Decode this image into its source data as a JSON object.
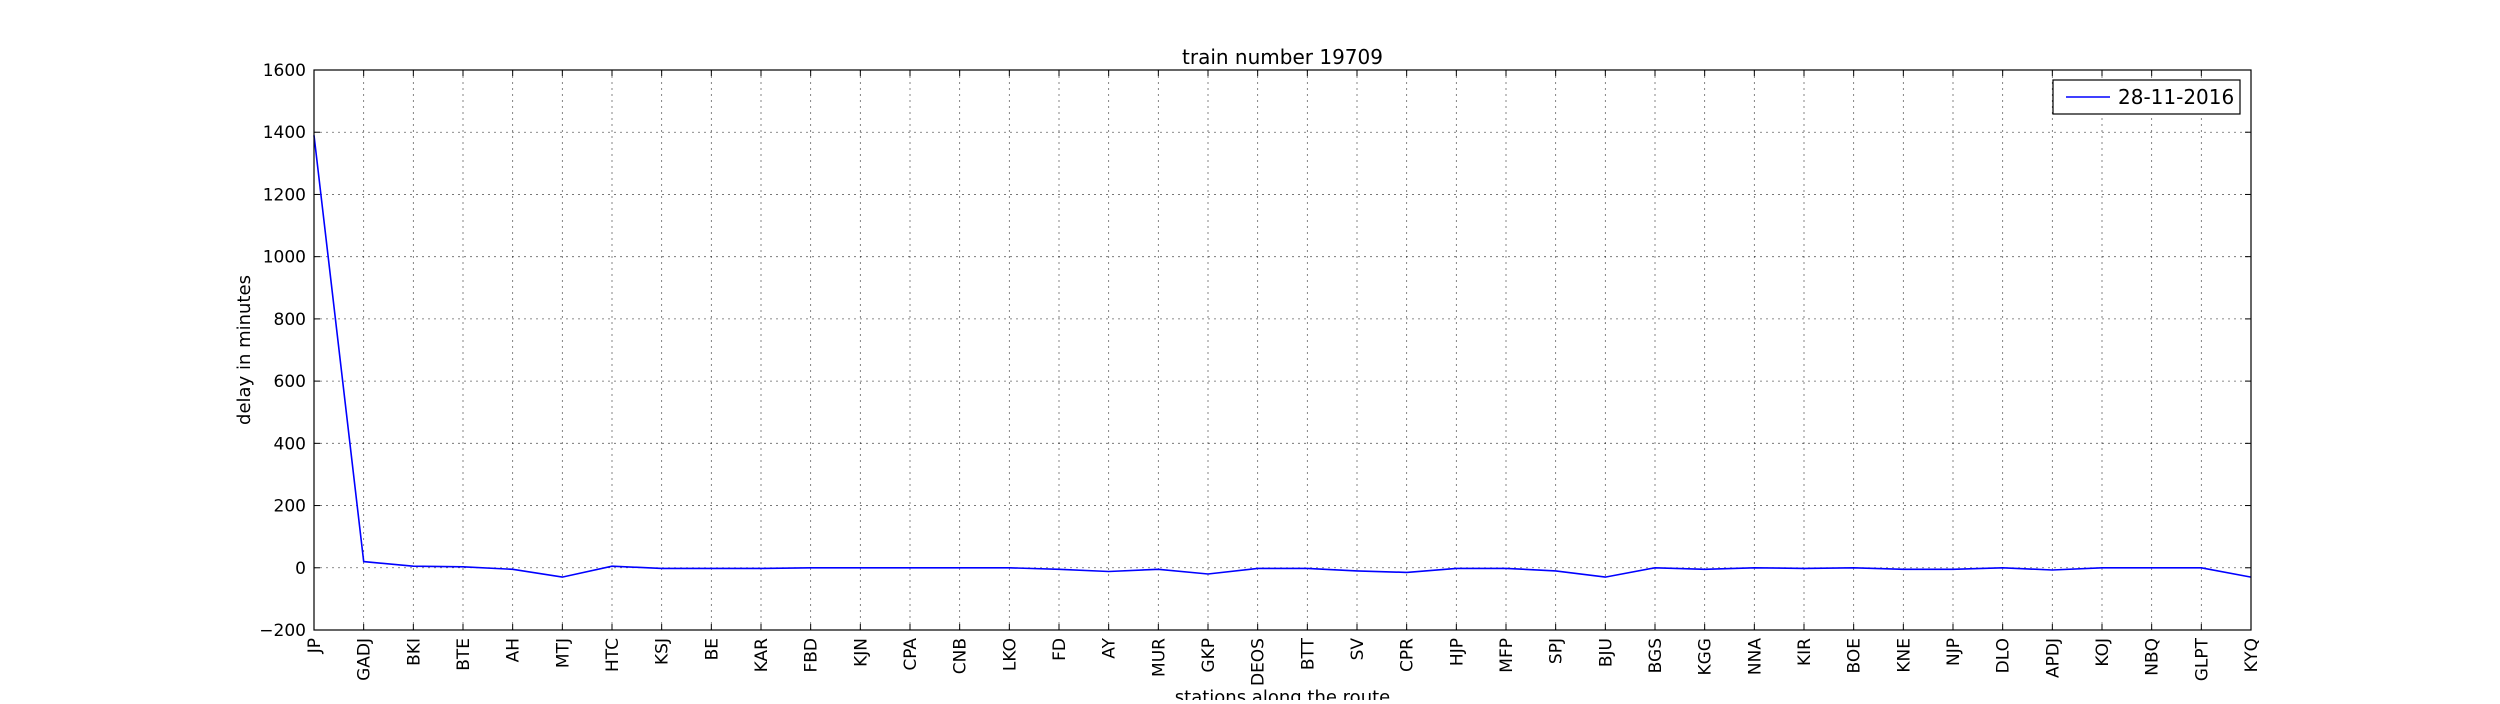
{
  "chart_data": {
    "type": "line",
    "title": "train number 19709",
    "xlabel": "stations along the route",
    "ylabel": "delay in minutes",
    "ylim": [
      -200,
      1600
    ],
    "yticks": [
      "−200",
      "0",
      "200",
      "400",
      "600",
      "800",
      "1000",
      "1200",
      "1400",
      "1600"
    ],
    "grid": true,
    "legend_position": "top-right",
    "categories": [
      "JP",
      "GADJ",
      "BKI",
      "BTE",
      "AH",
      "MTJ",
      "HTC",
      "KSJ",
      "BE",
      "KAR",
      "FBD",
      "KJN",
      "CPA",
      "CNB",
      "LKO",
      "FD",
      "AY",
      "MUR",
      "GKP",
      "DEOS",
      "BTT",
      "SV",
      "CPR",
      "HJP",
      "MFP",
      "SPJ",
      "BJU",
      "BGS",
      "KGG",
      "NNA",
      "KIR",
      "BOE",
      "KNE",
      "NJP",
      "DLO",
      "APDJ",
      "KOJ",
      "NBQ",
      "GLPT",
      "KYQ"
    ],
    "series": [
      {
        "name": "28-11-2016",
        "color": "#0000ff",
        "values": [
          1390,
          20,
          5,
          3,
          -5,
          -30,
          5,
          -2,
          -2,
          -2,
          0,
          0,
          0,
          0,
          0,
          -5,
          -12,
          -5,
          -20,
          -2,
          -2,
          -10,
          -15,
          -2,
          -2,
          -10,
          -30,
          0,
          -5,
          0,
          -2,
          0,
          -5,
          -5,
          0,
          -7,
          0,
          0,
          0,
          -30
        ]
      }
    ]
  }
}
